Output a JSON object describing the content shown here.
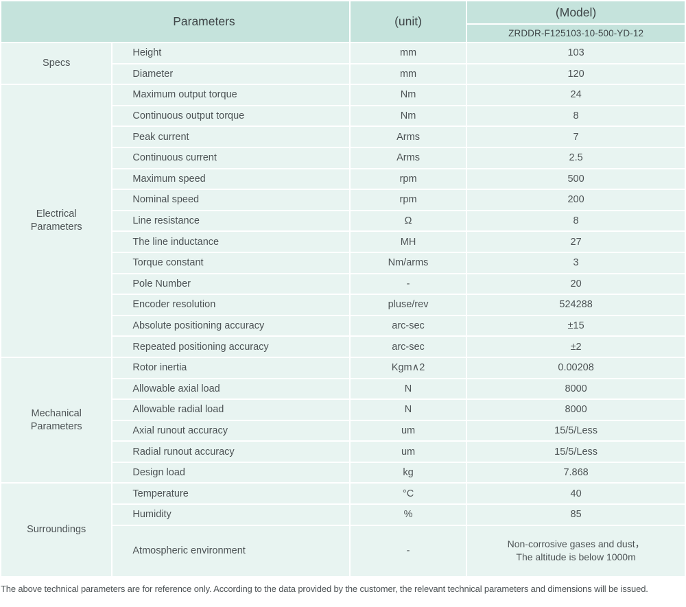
{
  "header": {
    "parameters_label": "Parameters",
    "unit_label": "(unit)",
    "model_label": "(Model)",
    "model_value": "ZRDDR-F125103-10-500-YD-12"
  },
  "sections": [
    {
      "name": "Specs",
      "rows": [
        {
          "param": "Height",
          "unit": "mm",
          "value": "103"
        },
        {
          "param": "Diameter",
          "unit": "mm",
          "value": "120"
        }
      ]
    },
    {
      "name": "Electrical Parameters",
      "rows": [
        {
          "param": "Maximum output torque",
          "unit": "Nm",
          "value": "24"
        },
        {
          "param": "Continuous output torque",
          "unit": "Nm",
          "value": "8"
        },
        {
          "param": "Peak current",
          "unit": "Arms",
          "value": "7"
        },
        {
          "param": "Continuous current",
          "unit": "Arms",
          "value": "2.5"
        },
        {
          "param": "Maximum speed",
          "unit": "rpm",
          "value": "500"
        },
        {
          "param": "Nominal speed",
          "unit": "rpm",
          "value": "200"
        },
        {
          "param": "Line resistance",
          "unit": "Ω",
          "value": "8"
        },
        {
          "param": "The line inductance",
          "unit": "MH",
          "value": "27"
        },
        {
          "param": "Torque constant",
          "unit": "Nm/arms",
          "value": "3"
        },
        {
          "param": "Pole Number",
          "unit": "-",
          "value": "20"
        },
        {
          "param": "Encoder resolution",
          "unit": "pluse/rev",
          "value": "524288"
        },
        {
          "param": "Absolute positioning accuracy",
          "unit": "arc-sec",
          "value": "±15"
        },
        {
          "param": "Repeated positioning accuracy",
          "unit": "arc-sec",
          "value": "±2"
        }
      ]
    },
    {
      "name": "Mechanical Parameters",
      "rows": [
        {
          "param": "Rotor inertia",
          "unit": "Kgm∧2",
          "value": "0.00208"
        },
        {
          "param": "Allowable axial load",
          "unit": "N",
          "value": "8000"
        },
        {
          "param": "Allowable radial load",
          "unit": "N",
          "value": "8000"
        },
        {
          "param": "Axial runout accuracy",
          "unit": "um",
          "value": "15/5/Less"
        },
        {
          "param": "Radial runout accuracy",
          "unit": "um",
          "value": "15/5/Less"
        },
        {
          "param": "Design load",
          "unit": "kg",
          "value": "7.868"
        }
      ]
    },
    {
      "name": "Surroundings",
      "rows": [
        {
          "param": "Temperature",
          "unit": "°C",
          "value": "40"
        },
        {
          "param": "Humidity",
          "unit": "%",
          "value": "85"
        },
        {
          "param": "Atmospheric environment",
          "unit": "-",
          "value": "Non-corrosive gases and dust，\nThe altitude is below 1000m"
        }
      ]
    }
  ],
  "footnote": "The above technical parameters are for reference only. According to the data provided by the customer, the relevant technical parameters and dimensions will be issued.",
  "colors": {
    "header_bg": "#c5e3dc",
    "row_bg": "#e8f4f1",
    "separator": "#ffffff",
    "header_text": "#3f4648",
    "body_text": "#4d5355"
  }
}
